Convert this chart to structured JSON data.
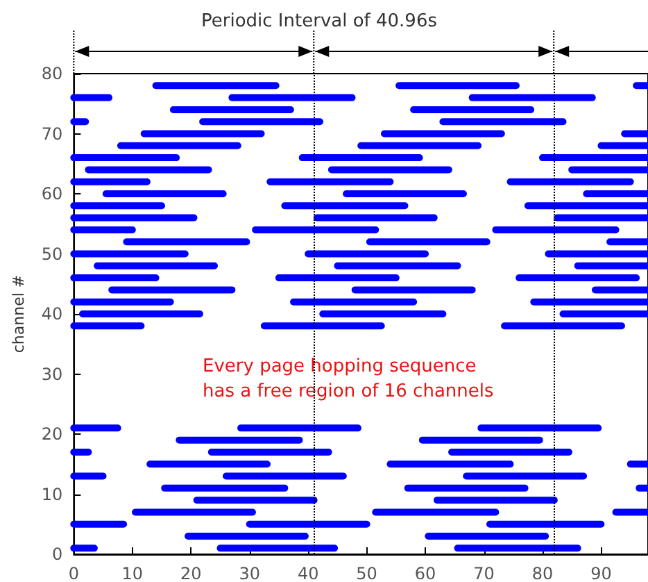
{
  "chart_data": {
    "type": "line",
    "title": "Periodic Interval of 40.96s",
    "ylabel": "channel #",
    "annotations": [
      "Every page hopping sequence\nhas a free region of 16 channels"
    ],
    "xlim": [
      0,
      98
    ],
    "ylim": [
      0,
      80
    ],
    "xticks": [
      0,
      10,
      20,
      30,
      40,
      50,
      60,
      70,
      80,
      90
    ],
    "yticks": [
      0,
      10,
      20,
      30,
      40,
      50,
      60,
      70,
      80
    ],
    "grid": false,
    "marker": "none",
    "line_style": "solid",
    "ref_lines": [
      {
        "axis": "x",
        "value": 40.96,
        "color": "#000000",
        "line_style": "dotted"
      },
      {
        "axis": "x",
        "value": 81.92,
        "color": "#000000",
        "line_style": "dotted"
      }
    ],
    "series": [
      {
        "color": "#0000ff",
        "x": [
          0,
          3.5,
          null,
          25,
          44.5,
          null,
          65.5,
          86
        ],
        "values": [
          1,
          1,
          null,
          1,
          1,
          null,
          1,
          1
        ]
      },
      {
        "color": "#0000ff",
        "x": [
          19.5,
          39.5,
          null,
          60.5,
          80.5
        ],
        "values": [
          3,
          3,
          null,
          3,
          3
        ]
      },
      {
        "color": "#0000ff",
        "x": [
          0,
          8.5,
          null,
          30,
          50,
          null,
          71,
          90
        ],
        "values": [
          5,
          5,
          null,
          5,
          5,
          null,
          5,
          5
        ]
      },
      {
        "color": "#0000ff",
        "x": [
          10.5,
          30.5,
          null,
          51.5,
          72,
          null,
          92.5,
          98
        ],
        "values": [
          7,
          7,
          null,
          7,
          7,
          null,
          7,
          7
        ]
      },
      {
        "color": "#0000ff",
        "x": [
          21,
          41,
          null,
          62,
          82
        ],
        "values": [
          9,
          9,
          null,
          9,
          9
        ]
      },
      {
        "color": "#0000ff",
        "x": [
          15.5,
          36,
          null,
          57,
          77,
          null,
          96.5,
          98
        ],
        "values": [
          11,
          11,
          null,
          11,
          11,
          null,
          11,
          11
        ]
      },
      {
        "color": "#0000ff",
        "x": [
          0,
          5,
          null,
          26,
          46,
          null,
          67,
          87
        ],
        "values": [
          13,
          13,
          null,
          13,
          13,
          null,
          13,
          13
        ]
      },
      {
        "color": "#0000ff",
        "x": [
          13,
          33,
          null,
          54,
          74.5,
          null,
          95,
          98
        ],
        "values": [
          15,
          15,
          null,
          15,
          15,
          null,
          15,
          15
        ]
      },
      {
        "color": "#0000ff",
        "x": [
          0,
          2.5,
          null,
          23.5,
          43.5,
          null,
          64.5,
          84.5
        ],
        "values": [
          17,
          17,
          null,
          17,
          17,
          null,
          17,
          17
        ]
      },
      {
        "color": "#0000ff",
        "x": [
          18,
          38.5,
          null,
          59.5,
          79.5
        ],
        "values": [
          19,
          19,
          null,
          19,
          19
        ]
      },
      {
        "color": "#0000ff",
        "x": [
          0,
          7.5,
          null,
          28.5,
          48.5,
          null,
          69.5,
          89.5
        ],
        "values": [
          21,
          21,
          null,
          21,
          21,
          null,
          21,
          21
        ]
      },
      {
        "color": "#0000ff",
        "x": [
          0,
          11.5,
          null,
          32.5,
          52.5,
          null,
          73.5,
          93.5
        ],
        "values": [
          38,
          38,
          null,
          38,
          38,
          null,
          38,
          38
        ]
      },
      {
        "color": "#0000ff",
        "x": [
          1.5,
          21.5,
          null,
          42.5,
          63,
          null,
          83.5,
          98
        ],
        "values": [
          40,
          40,
          null,
          40,
          40,
          null,
          40,
          40
        ]
      },
      {
        "color": "#0000ff",
        "x": [
          0,
          16.5,
          null,
          37.5,
          58,
          null,
          78.5,
          98
        ],
        "values": [
          42,
          42,
          null,
          42,
          42,
          null,
          42,
          42
        ]
      },
      {
        "color": "#0000ff",
        "x": [
          6.5,
          27,
          null,
          48,
          68,
          null,
          89,
          98
        ],
        "values": [
          44,
          44,
          null,
          44,
          44,
          null,
          44,
          44
        ]
      },
      {
        "color": "#0000ff",
        "x": [
          0,
          14,
          null,
          35,
          55,
          null,
          76,
          96
        ],
        "values": [
          46,
          46,
          null,
          46,
          46,
          null,
          46,
          46
        ]
      },
      {
        "color": "#0000ff",
        "x": [
          4,
          24,
          null,
          45,
          65.5,
          null,
          86,
          98
        ],
        "values": [
          48,
          48,
          null,
          48,
          48,
          null,
          48,
          48
        ]
      },
      {
        "color": "#0000ff",
        "x": [
          0,
          19,
          null,
          40,
          60,
          null,
          81,
          98
        ],
        "values": [
          50,
          50,
          null,
          50,
          50,
          null,
          50,
          50
        ]
      },
      {
        "color": "#0000ff",
        "x": [
          9,
          29.5,
          null,
          50.5,
          70.5,
          null,
          91.5,
          98
        ],
        "values": [
          52,
          52,
          null,
          52,
          52,
          null,
          52,
          52
        ]
      },
      {
        "color": "#0000ff",
        "x": [
          0,
          10,
          null,
          31,
          51.5,
          null,
          72,
          92.5
        ],
        "values": [
          54,
          54,
          null,
          54,
          54,
          null,
          54,
          54
        ]
      },
      {
        "color": "#0000ff",
        "x": [
          0,
          20.5,
          null,
          41.5,
          61.5,
          null,
          82.5,
          98
        ],
        "values": [
          56,
          56,
          null,
          56,
          56,
          null,
          56,
          56
        ]
      },
      {
        "color": "#0000ff",
        "x": [
          0,
          15,
          null,
          36,
          56.5,
          null,
          77.5,
          98
        ],
        "values": [
          58,
          58,
          null,
          58,
          58,
          null,
          58,
          58
        ]
      },
      {
        "color": "#0000ff",
        "x": [
          5.5,
          25.5,
          null,
          46.5,
          66.5,
          null,
          87.5,
          98
        ],
        "values": [
          60,
          60,
          null,
          60,
          60,
          null,
          60,
          60
        ]
      },
      {
        "color": "#0000ff",
        "x": [
          0,
          12.5,
          null,
          33.5,
          54,
          null,
          74.5,
          95
        ],
        "values": [
          62,
          62,
          null,
          62,
          62,
          null,
          62,
          62
        ]
      },
      {
        "color": "#0000ff",
        "x": [
          2.5,
          23,
          null,
          44,
          64,
          null,
          85,
          98
        ],
        "values": [
          64,
          64,
          null,
          64,
          64,
          null,
          64,
          64
        ]
      },
      {
        "color": "#0000ff",
        "x": [
          0,
          17.5,
          null,
          39,
          59,
          null,
          80,
          98
        ],
        "values": [
          66,
          66,
          null,
          66,
          66,
          null,
          66,
          66
        ]
      },
      {
        "color": "#0000ff",
        "x": [
          8,
          28,
          null,
          49,
          69,
          null,
          90,
          98
        ],
        "values": [
          68,
          68,
          null,
          68,
          68,
          null,
          68,
          68
        ]
      },
      {
        "color": "#0000ff",
        "x": [
          12,
          32,
          null,
          53,
          73,
          null,
          94,
          98
        ],
        "values": [
          70,
          70,
          null,
          70,
          70,
          null,
          70,
          70
        ]
      },
      {
        "color": "#0000ff",
        "x": [
          0,
          2,
          null,
          22,
          42,
          null,
          63,
          83.5
        ],
        "values": [
          72,
          72,
          null,
          72,
          72,
          null,
          72,
          72
        ]
      },
      {
        "color": "#0000ff",
        "x": [
          17,
          37,
          null,
          58,
          78
        ],
        "values": [
          74,
          74,
          null,
          74,
          74
        ]
      },
      {
        "color": "#0000ff",
        "x": [
          0,
          6,
          null,
          27,
          47.5,
          null,
          68,
          88.5
        ],
        "values": [
          76,
          76,
          null,
          76,
          76,
          null,
          76,
          76
        ]
      },
      {
        "color": "#0000ff",
        "x": [
          14,
          34.5,
          null,
          55.5,
          75.5,
          null,
          96,
          98
        ],
        "values": [
          78,
          78,
          null,
          78,
          78,
          null,
          78,
          78
        ]
      }
    ]
  }
}
